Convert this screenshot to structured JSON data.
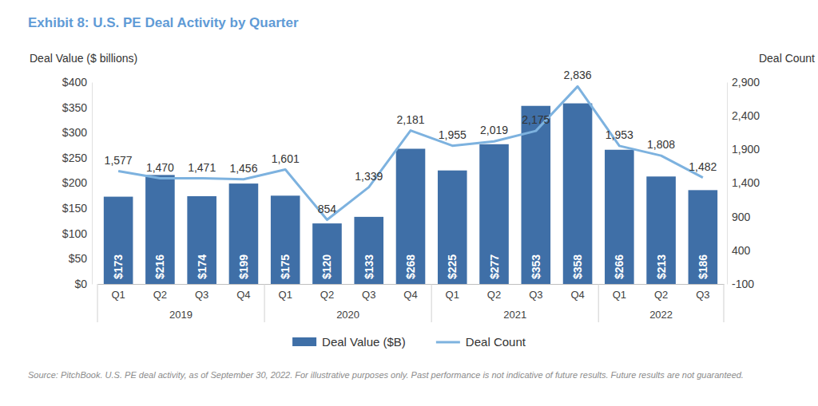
{
  "chart_data": {
    "type": "bar",
    "title": "Exhibit 8: U.S. PE Deal Activity by Quarter",
    "y_label": "Deal Value ($ billions)",
    "y2_label": "Deal Count",
    "source": "Source: PitchBook. U.S. PE deal activity, as of September 30, 2022. For illustrative purposes only. Past performance is not indicative of future results. Future results are not guaranteed.",
    "categories": [
      "Q1",
      "Q2",
      "Q3",
      "Q4",
      "Q1",
      "Q2",
      "Q3",
      "Q4",
      "Q1",
      "Q2",
      "Q3",
      "Q4",
      "Q1",
      "Q2",
      "Q3"
    ],
    "groups": [
      "2019",
      "2019",
      "2019",
      "2019",
      "2020",
      "2020",
      "2020",
      "2020",
      "2021",
      "2021",
      "2021",
      "2021",
      "2022",
      "2022",
      "2022"
    ],
    "series": [
      {
        "name": "Deal Value ($B)",
        "type": "bar",
        "color": "#3f6fa7",
        "values": [
          173,
          216,
          174,
          199,
          175,
          120,
          133,
          268,
          225,
          277,
          353,
          358,
          266,
          213,
          186
        ],
        "value_labels": [
          "$173",
          "$216",
          "$174",
          "$199",
          "$175",
          "$120",
          "$133",
          "$268",
          "$225",
          "$277",
          "$353",
          "$358",
          "$266",
          "$213",
          "$186"
        ]
      },
      {
        "name": "Deal Count",
        "type": "line",
        "axis": "y2",
        "color": "#7db2df",
        "values": [
          1577,
          1470,
          1471,
          1456,
          1601,
          854,
          1339,
          2181,
          1955,
          2019,
          2175,
          2836,
          1953,
          1808,
          1482
        ],
        "value_labels": [
          "1,577",
          "1,470",
          "1,471",
          "1,456",
          "1,601",
          "854",
          "1,339",
          "2,181",
          "1,955",
          "2,019",
          "2,175",
          "2,836",
          "1,953",
          "1,808",
          "1,482"
        ]
      }
    ],
    "ylim": [
      0,
      400
    ],
    "yticks": [
      {
        "value": 0,
        "label": "$0"
      },
      {
        "value": 50,
        "label": "$50"
      },
      {
        "value": 100,
        "label": "$100"
      },
      {
        "value": 150,
        "label": "$150"
      },
      {
        "value": 200,
        "label": "$200"
      },
      {
        "value": 250,
        "label": "$250"
      },
      {
        "value": 300,
        "label": "$300"
      },
      {
        "value": 350,
        "label": "$350"
      },
      {
        "value": 400,
        "label": "$400"
      }
    ],
    "y2lim": [
      -100,
      2900
    ],
    "y2ticks": [
      -100,
      400,
      900,
      {
        "value": 1400,
        "label": "1,400"
      },
      {
        "value": 1900,
        "label": "1,900"
      },
      {
        "value": 2400,
        "label": "2,400"
      },
      {
        "value": 2900,
        "label": "2,900"
      }
    ],
    "data_labels": true,
    "legend": "bottom",
    "grid": false
  }
}
